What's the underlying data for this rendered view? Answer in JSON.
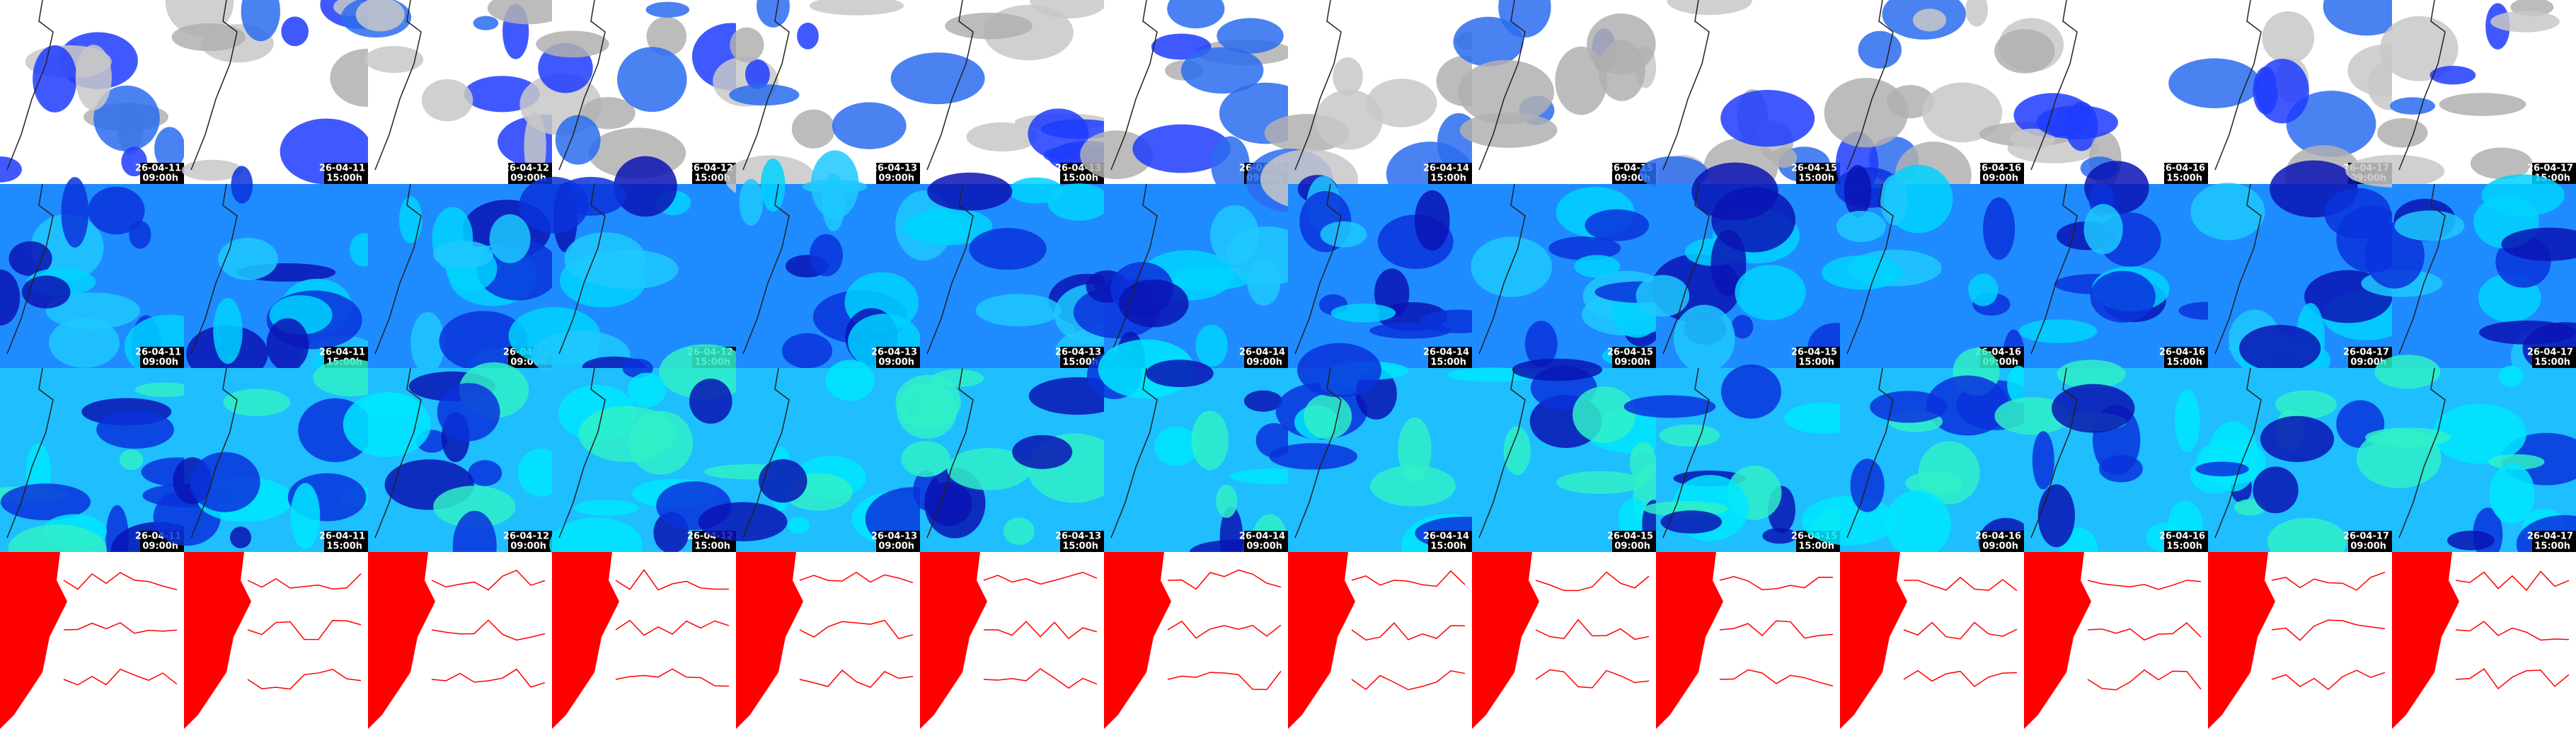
{
  "panels": [
    {
      "date": "26-04-11",
      "time": "09:00h"
    },
    {
      "date": "26-04-11",
      "time": "15:00h"
    },
    {
      "date": "26-04-12",
      "time": "09:00h"
    },
    {
      "date": "26-04-12",
      "time": "15:00h"
    },
    {
      "date": "26-04-13",
      "time": "09:00h"
    },
    {
      "date": "26-04-13",
      "time": "15:00h"
    },
    {
      "date": "26-04-14",
      "time": "09:00h"
    },
    {
      "date": "26-04-14",
      "time": "15:00h"
    },
    {
      "date": "26-04-15",
      "time": "09:00h"
    },
    {
      "date": "26-04-15",
      "time": "15:00h"
    },
    {
      "date": "26-04-16",
      "time": "09:00h"
    },
    {
      "date": "26-04-16",
      "time": "15:00h"
    },
    {
      "date": "26-04-17",
      "time": "09:00h"
    },
    {
      "date": "26-04-17",
      "time": "15:00h"
    }
  ]
}
